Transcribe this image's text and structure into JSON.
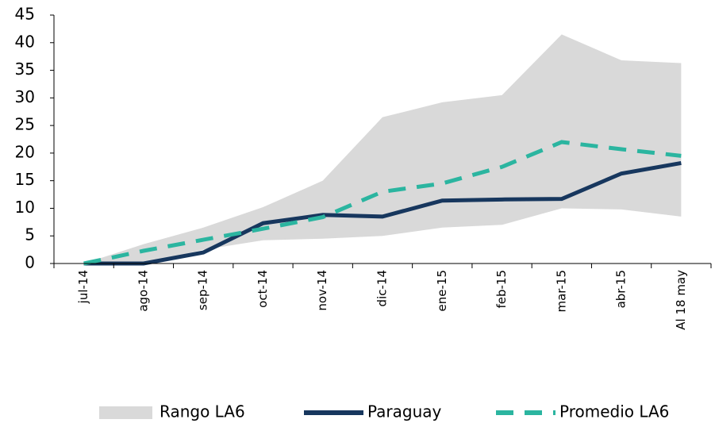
{
  "chart_data": {
    "type": "line",
    "categories": [
      "jul-14",
      "ago-14",
      "sep-14",
      "oct-14",
      "nov-14",
      "dic-14",
      "ene-15",
      "feb-15",
      "mar-15",
      "abr-15",
      "Al 18 may"
    ],
    "series": [
      {
        "name": "Rango LA6",
        "color": "#d9d9d9",
        "low": [
          0,
          0,
          2.5,
          4.2,
          4.5,
          5,
          6.5,
          7,
          10,
          9.8,
          8.5
        ],
        "high": [
          0,
          3.5,
          6.5,
          10.2,
          15,
          26.5,
          29.2,
          30.5,
          41.5,
          36.8,
          36.3
        ]
      },
      {
        "name": "Paraguay",
        "color": "#17375e",
        "values": [
          0,
          0,
          2,
          7.3,
          8.8,
          8.5,
          11.4,
          11.6,
          11.7,
          16.3,
          18.2
        ]
      },
      {
        "name": "Promedio LA6",
        "color": "#2bb5a0",
        "dashed": true,
        "values": [
          0,
          2.3,
          4.3,
          6.3,
          8.4,
          13,
          14.5,
          17.5,
          22,
          20.7,
          19.5
        ]
      }
    ],
    "ylim": [
      0,
      45
    ],
    "yticks": [
      0,
      5,
      10,
      15,
      20,
      25,
      30,
      35,
      40,
      45
    ]
  }
}
